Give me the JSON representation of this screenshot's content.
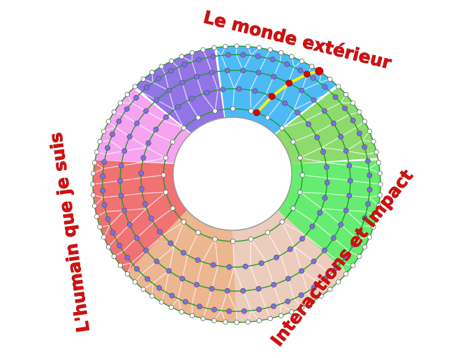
{
  "labels": {
    "top": "Le monde extérieur",
    "left": "L'humain que je suis",
    "bottom_right": "Interactions et impact"
  },
  "colors": {
    "label": "#d41010",
    "ring_line": "#1f9a2a",
    "inner_dot": "#ffffff",
    "mid_dot": "#7b6fe8",
    "path": "#ffee00",
    "path_dot": "#e00000",
    "sectors": [
      "#4dbaf6",
      "#8cdb6c",
      "#66ec70",
      "#ecccbc",
      "#ebb690",
      "#f07272",
      "#f6a4f0",
      "#9274e6"
    ]
  }
}
